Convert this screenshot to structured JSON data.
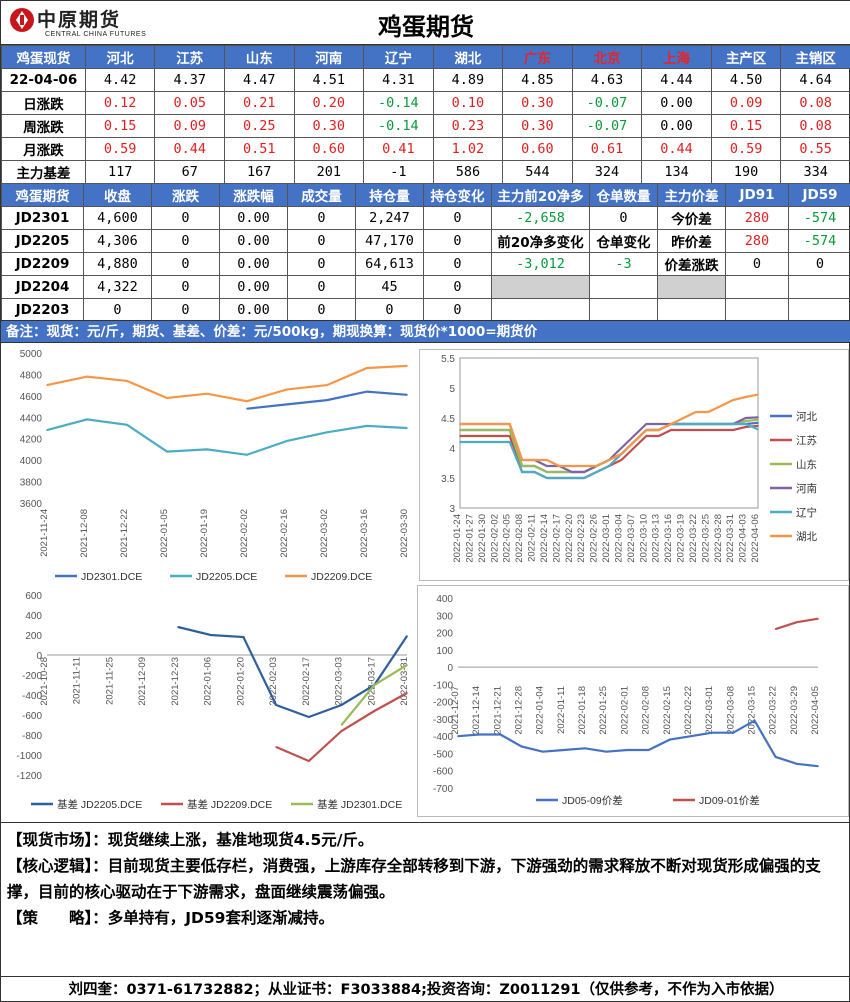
{
  "header": {
    "logo_cn": "中原期货",
    "logo_en": "CENTRAL CHINA FUTURES",
    "title": "鸡蛋期货"
  },
  "spot": {
    "headers": [
      "鸡蛋现货",
      "河北",
      "江苏",
      "山东",
      "河南",
      "辽宁",
      "湖北",
      "广东",
      "北京",
      "上海",
      "主产区",
      "主销区"
    ],
    "rows": [
      {
        "label": "22-04-06",
        "cells": [
          {
            "v": "4.42",
            "c": ""
          },
          {
            "v": "4.37",
            "c": ""
          },
          {
            "v": "4.47",
            "c": ""
          },
          {
            "v": "4.51",
            "c": ""
          },
          {
            "v": "4.31",
            "c": ""
          },
          {
            "v": "4.89",
            "c": ""
          },
          {
            "v": "4.85",
            "c": ""
          },
          {
            "v": "4.63",
            "c": ""
          },
          {
            "v": "4.44",
            "c": ""
          },
          {
            "v": "4.50",
            "c": ""
          },
          {
            "v": "4.64",
            "c": ""
          }
        ]
      },
      {
        "label": "日涨跌",
        "cells": [
          {
            "v": "0.12",
            "c": "r"
          },
          {
            "v": "0.05",
            "c": "r"
          },
          {
            "v": "0.21",
            "c": "r"
          },
          {
            "v": "0.20",
            "c": "r"
          },
          {
            "v": "-0.14",
            "c": "g"
          },
          {
            "v": "0.10",
            "c": "r"
          },
          {
            "v": "0.30",
            "c": "r"
          },
          {
            "v": "-0.07",
            "c": "g"
          },
          {
            "v": "0.00",
            "c": ""
          },
          {
            "v": "0.09",
            "c": "r"
          },
          {
            "v": "0.08",
            "c": "r"
          }
        ]
      },
      {
        "label": "周涨跌",
        "cells": [
          {
            "v": "0.15",
            "c": "r"
          },
          {
            "v": "0.09",
            "c": "r"
          },
          {
            "v": "0.25",
            "c": "r"
          },
          {
            "v": "0.30",
            "c": "r"
          },
          {
            "v": "-0.14",
            "c": "g"
          },
          {
            "v": "0.23",
            "c": "r"
          },
          {
            "v": "0.30",
            "c": "r"
          },
          {
            "v": "-0.07",
            "c": "g"
          },
          {
            "v": "0.00",
            "c": ""
          },
          {
            "v": "0.15",
            "c": "r"
          },
          {
            "v": "0.08",
            "c": "r"
          }
        ]
      },
      {
        "label": "月涨跌",
        "cells": [
          {
            "v": "0.59",
            "c": "r"
          },
          {
            "v": "0.44",
            "c": "r"
          },
          {
            "v": "0.51",
            "c": "r"
          },
          {
            "v": "0.60",
            "c": "r"
          },
          {
            "v": "0.41",
            "c": "r"
          },
          {
            "v": "1.02",
            "c": "r"
          },
          {
            "v": "0.60",
            "c": "r"
          },
          {
            "v": "0.61",
            "c": "r"
          },
          {
            "v": "0.44",
            "c": "r"
          },
          {
            "v": "0.59",
            "c": "r"
          },
          {
            "v": "0.55",
            "c": "r"
          }
        ]
      },
      {
        "label": "主力基差",
        "cells": [
          {
            "v": "117",
            "c": ""
          },
          {
            "v": "67",
            "c": ""
          },
          {
            "v": "167",
            "c": ""
          },
          {
            "v": "201",
            "c": ""
          },
          {
            "v": "-1",
            "c": ""
          },
          {
            "v": "586",
            "c": ""
          },
          {
            "v": "544",
            "c": ""
          },
          {
            "v": "324",
            "c": ""
          },
          {
            "v": "134",
            "c": ""
          },
          {
            "v": "190",
            "c": ""
          },
          {
            "v": "334",
            "c": ""
          }
        ]
      }
    ]
  },
  "futures": {
    "headers": [
      "鸡蛋期货",
      "收盘",
      "涨跌",
      "涨跌幅",
      "成交量",
      "持仓量",
      "持仓变化",
      "主力前20净多",
      "仓单数量",
      "主力价差",
      "JD91",
      "JD59"
    ],
    "rows": [
      [
        "JD2301",
        "4,600",
        "0",
        "0.00",
        "0",
        "2,247",
        "0"
      ],
      [
        "JD2205",
        "4,306",
        "0",
        "0.00",
        "0",
        "47,170",
        "0"
      ],
      [
        "JD2209",
        "4,880",
        "0",
        "0.00",
        "0",
        "64,613",
        "0"
      ],
      [
        "JD2204",
        "4,322",
        "0",
        "0.00",
        "0",
        "45",
        "0"
      ],
      [
        "JD2203",
        "0",
        "0",
        "0.00",
        "0",
        "0",
        "0"
      ]
    ],
    "net_long_20": "-2,658",
    "warehouse_count": "0",
    "today_spread_label": "今价差",
    "today_jd91": "280",
    "today_jd59": "-574",
    "net_change_label": "前20净多变化",
    "warehouse_change_label": "仓单变化",
    "yesterday_spread_label": "昨价差",
    "yesterday_jd91": "280",
    "yesterday_jd59": "-574",
    "net_change": "-3,012",
    "warehouse_change": "-3",
    "spread_change_label": "价差涨跌",
    "spread_change_jd91": "0",
    "spread_change_jd59": "0"
  },
  "note": "备注：现货：元/斤，期货、基差、价差：元/500kg，期现换算：现货价*1000=期货价",
  "colors": {
    "header_blue": "#4472c4",
    "up_red": "#e02020",
    "down_green": "#0a9a3a"
  },
  "chart_data": [
    {
      "type": "line",
      "x": [
        "2021-11-24",
        "2021-12-08",
        "2021-12-22",
        "2022-01-05",
        "2022-01-19",
        "2022-02-02",
        "2022-02-16",
        "2022-03-02",
        "2022-03-16",
        "2022-03-30"
      ],
      "ylim": [
        3600,
        5000
      ],
      "yticks": [
        3600,
        3800,
        4000,
        4200,
        4400,
        4600,
        4800,
        5000
      ],
      "legend_position": "bottom",
      "series": [
        {
          "name": "JD2301.DCE",
          "color": "#4472c4",
          "values": [
            null,
            null,
            null,
            null,
            null,
            4480,
            4520,
            4560,
            4640,
            4610
          ]
        },
        {
          "name": "JD2205.DCE",
          "color": "#4bacc6",
          "values": [
            4280,
            4380,
            4330,
            4080,
            4100,
            4050,
            4180,
            4260,
            4320,
            4300
          ]
        },
        {
          "name": "JD2209.DCE",
          "color": "#f79646",
          "values": [
            4700,
            4780,
            4740,
            4580,
            4620,
            4550,
            4660,
            4700,
            4860,
            4880
          ]
        }
      ]
    },
    {
      "type": "line",
      "x": [
        "2022-01-24",
        "2022-01-27",
        "2022-01-30",
        "2022-02-02",
        "2022-02-05",
        "2022-02-08",
        "2022-02-11",
        "2022-02-14",
        "2022-02-17",
        "2022-02-20",
        "2022-02-23",
        "2022-02-26",
        "2022-03-01",
        "2022-03-04",
        "2022-03-07",
        "2022-03-10",
        "2022-03-13",
        "2022-03-16",
        "2022-03-19",
        "2022-03-22",
        "2022-03-25",
        "2022-03-28",
        "2022-03-31",
        "2022-04-03",
        "2022-04-06"
      ],
      "ylim": [
        3.0,
        5.5
      ],
      "yticks": [
        3.0,
        3.5,
        4.0,
        4.5,
        5.0,
        5.5
      ],
      "legend_position": "right",
      "series": [
        {
          "name": "河北",
          "color": "#4472c4",
          "values": [
            4.3,
            4.3,
            4.3,
            4.3,
            4.3,
            3.7,
            3.7,
            3.6,
            3.6,
            3.6,
            3.6,
            3.7,
            3.8,
            3.9,
            4.1,
            4.3,
            4.3,
            4.4,
            4.4,
            4.4,
            4.4,
            4.4,
            4.4,
            4.4,
            4.42
          ]
        },
        {
          "name": "江苏",
          "color": "#c0504d",
          "values": [
            4.2,
            4.2,
            4.2,
            4.2,
            4.2,
            3.6,
            3.6,
            3.5,
            3.5,
            3.5,
            3.5,
            3.6,
            3.7,
            3.8,
            4.0,
            4.2,
            4.2,
            4.3,
            4.3,
            4.3,
            4.3,
            4.3,
            4.3,
            4.35,
            4.37
          ]
        },
        {
          "name": "山东",
          "color": "#9bbb59",
          "values": [
            4.3,
            4.3,
            4.3,
            4.3,
            4.3,
            3.7,
            3.7,
            3.6,
            3.6,
            3.6,
            3.6,
            3.7,
            3.8,
            3.9,
            4.1,
            4.3,
            4.3,
            4.4,
            4.4,
            4.4,
            4.4,
            4.4,
            4.4,
            4.45,
            4.47
          ]
        },
        {
          "name": "河南",
          "color": "#8064a2",
          "values": [
            4.4,
            4.4,
            4.4,
            4.4,
            4.4,
            3.8,
            3.8,
            3.7,
            3.7,
            3.6,
            3.6,
            3.7,
            3.8,
            4.0,
            4.2,
            4.4,
            4.4,
            4.4,
            4.4,
            4.4,
            4.4,
            4.4,
            4.4,
            4.5,
            4.51
          ]
        },
        {
          "name": "辽宁",
          "color": "#4bacc6",
          "values": [
            4.1,
            4.1,
            4.1,
            4.1,
            4.1,
            3.6,
            3.6,
            3.5,
            3.5,
            3.5,
            3.5,
            3.6,
            3.7,
            3.9,
            4.1,
            4.3,
            4.3,
            4.4,
            4.4,
            4.4,
            4.4,
            4.4,
            4.4,
            4.4,
            4.31
          ]
        },
        {
          "name": "湖北",
          "color": "#f79646",
          "values": [
            4.4,
            4.4,
            4.4,
            4.4,
            4.4,
            3.8,
            3.8,
            3.8,
            3.7,
            3.7,
            3.7,
            3.7,
            3.8,
            3.9,
            4.1,
            4.3,
            4.3,
            4.4,
            4.5,
            4.6,
            4.6,
            4.7,
            4.8,
            4.85,
            4.89
          ]
        }
      ]
    },
    {
      "type": "line",
      "x": [
        "2021-10-28",
        "2021-11-11",
        "2021-11-25",
        "2021-12-09",
        "2021-12-23",
        "2022-01-06",
        "2022-01-20",
        "2022-02-03",
        "2022-02-17",
        "2022-03-03",
        "2022-03-17",
        "2022-03-31"
      ],
      "ylim": [
        -1200,
        600
      ],
      "yticks": [
        -1200,
        -1000,
        -800,
        -600,
        -400,
        -200,
        0,
        200,
        400,
        600
      ],
      "legend_position": "bottom",
      "series": [
        {
          "name": "基差 JD2205.DCE",
          "color": "#2e5f9e",
          "values": [
            null,
            null,
            null,
            null,
            280,
            200,
            180,
            -500,
            -620,
            -500,
            -300,
            190
          ]
        },
        {
          "name": "基差 JD2209.DCE",
          "color": "#c0504d",
          "values": [
            null,
            null,
            null,
            null,
            null,
            null,
            null,
            -920,
            -1060,
            -760,
            -560,
            -380
          ]
        },
        {
          "name": "基差 JD2301.DCE",
          "color": "#9bbb59",
          "values": [
            null,
            null,
            null,
            null,
            null,
            null,
            null,
            null,
            null,
            -700,
            -300,
            -100
          ]
        }
      ]
    },
    {
      "type": "line",
      "x": [
        "2021-12-07",
        "2021-12-14",
        "2021-12-21",
        "2021-12-28",
        "2022-01-04",
        "2022-01-11",
        "2022-01-18",
        "2022-01-25",
        "2022-02-01",
        "2022-02-08",
        "2022-02-15",
        "2022-02-22",
        "2022-03-01",
        "2022-03-08",
        "2022-03-15",
        "2022-03-22",
        "2022-03-29",
        "2022-04-05"
      ],
      "ylim": [
        -700,
        400
      ],
      "yticks": [
        -700,
        -600,
        -500,
        -400,
        -300,
        -200,
        -100,
        0,
        100,
        200,
        300,
        400
      ],
      "legend_position": "bottom",
      "series": [
        {
          "name": "JD05-09价差",
          "color": "#4472c4",
          "values": [
            -400,
            -390,
            -390,
            -460,
            -490,
            -480,
            -470,
            -490,
            -480,
            -480,
            -420,
            -400,
            -380,
            -380,
            -310,
            -520,
            -560,
            -574
          ]
        },
        {
          "name": "JD09-01价差",
          "color": "#c0504d",
          "values": [
            null,
            null,
            null,
            null,
            null,
            null,
            null,
            null,
            null,
            null,
            null,
            null,
            null,
            null,
            null,
            220,
            260,
            280
          ]
        }
      ]
    }
  ],
  "analysis": [
    {
      "key": "【现货市场】：",
      "text": "现货继续上涨，基准地现货4.5元/斤。"
    },
    {
      "key": "【核心逻辑】：",
      "text": "目前现货主要低存栏，消费强，上游库存全部转移到下游，下游强劲的需求释放不断对现货形成偏强的支撑，目前的核心驱动在于下游需求，盘面继续震荡偏强。"
    },
    {
      "key": "【策　　略】：",
      "text": "多单持有，JD59套利逐渐减持。"
    }
  ],
  "footer": "刘四奎：0371-61732882；从业证书：F3033884;投资咨询：Z0011291（仅供参考，不作为入市依据）"
}
